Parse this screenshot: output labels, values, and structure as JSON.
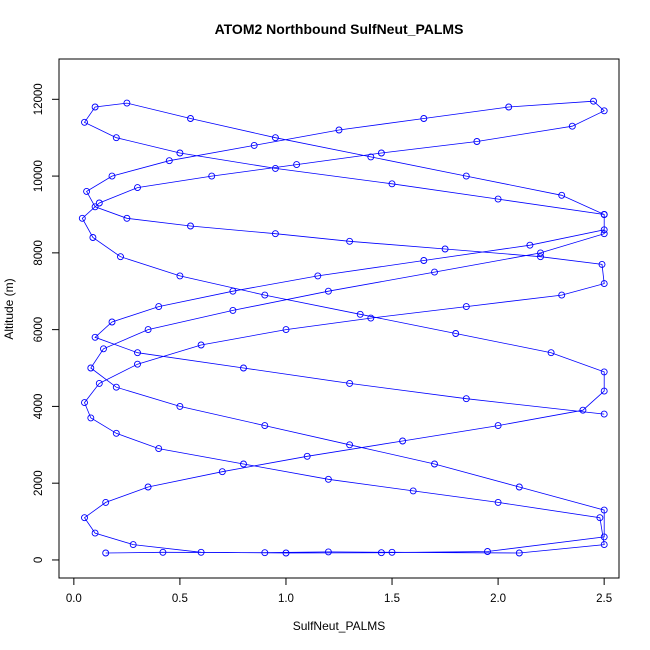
{
  "chart_data": {
    "type": "scatter",
    "title": "ATOM2 Northbound SulfNeut_PALMS",
    "xlabel": "SulfNeut_PALMS",
    "ylabel": "Altitude (m)",
    "xlim": [
      -0.07,
      2.57
    ],
    "ylim": [
      -470,
      13050
    ],
    "xticks": [
      0.0,
      0.5,
      1.0,
      1.5,
      2.0,
      2.5
    ],
    "xtick_labels": [
      "0.0",
      "0.5",
      "1.0",
      "1.5",
      "2.0",
      "2.5"
    ],
    "yticks": [
      0,
      2000,
      4000,
      6000,
      8000,
      10000,
      12000
    ],
    "ytick_labels": [
      "0",
      "2000",
      "4000",
      "6000",
      "8000",
      "10000",
      "12000"
    ],
    "grid": false,
    "legend": "none",
    "color": "#0000ff",
    "series": [
      {
        "x": [
          0.15,
          0.42,
          0.9,
          1.2,
          1.5,
          2.1,
          2.5,
          2.48,
          2.0,
          1.6,
          1.2,
          0.8,
          0.4,
          0.2,
          0.08,
          0.05,
          0.12,
          0.3,
          0.6,
          1.0,
          1.4,
          1.85,
          2.3,
          2.5,
          2.49,
          2.2,
          1.75,
          1.3,
          0.95,
          0.55,
          0.25,
          0.1,
          0.06,
          0.18,
          0.45,
          0.85,
          1.25,
          1.65,
          2.05,
          2.45,
          2.5,
          2.35,
          1.9,
          1.45,
          1.05,
          0.65,
          0.3,
          0.12,
          0.04,
          0.09,
          0.22,
          0.5,
          0.9,
          1.35,
          1.8,
          2.25,
          2.5,
          2.5,
          2.4,
          2.0,
          1.55,
          1.1,
          0.7,
          0.35,
          0.15,
          0.05,
          0.1,
          0.28,
          0.6,
          1.0,
          1.45,
          1.95,
          2.5,
          2.5,
          2.1,
          1.7,
          1.3,
          0.9,
          0.5,
          0.2,
          0.08,
          0.14,
          0.35,
          0.75,
          1.2,
          1.7,
          2.2,
          2.5,
          2.5,
          2.3,
          1.85,
          1.4,
          0.95,
          0.55,
          0.25,
          0.1,
          0.05,
          0.2,
          0.5,
          0.95,
          1.5,
          2.0,
          2.5,
          2.5,
          2.15,
          1.65,
          1.15,
          0.75,
          0.4,
          0.18,
          0.1,
          0.3,
          0.8,
          1.3,
          1.85,
          2.5
        ],
        "y": [
          180,
          200,
          190,
          210,
          200,
          180,
          400,
          1100,
          1500,
          1800,
          2100,
          2500,
          2900,
          3300,
          3700,
          4100,
          4600,
          5100,
          5600,
          6000,
          6300,
          6600,
          6900,
          7200,
          7700,
          7900,
          8100,
          8300,
          8500,
          8700,
          8900,
          9200,
          9600,
          10000,
          10400,
          10800,
          11200,
          11500,
          11800,
          11950,
          11700,
          11300,
          10900,
          10600,
          10300,
          10000,
          9700,
          9300,
          8900,
          8400,
          7900,
          7400,
          6900,
          6400,
          5900,
          5400,
          4900,
          4400,
          3900,
          3500,
          3100,
          2700,
          2300,
          1900,
          1500,
          1100,
          700,
          400,
          200,
          180,
          190,
          220,
          600,
          1300,
          1900,
          2500,
          3000,
          3500,
          4000,
          4500,
          5000,
          5500,
          6000,
          6500,
          7000,
          7500,
          8000,
          8500,
          9000,
          9500,
          10000,
          10500,
          11000,
          11500,
          11900,
          11800,
          11400,
          11000,
          10600,
          10200,
          9800,
          9400,
          9000,
          8600,
          8200,
          7800,
          7400,
          7000,
          6600,
          6200,
          5800,
          5400,
          5000,
          4600,
          4200,
          3800
        ]
      }
    ]
  }
}
